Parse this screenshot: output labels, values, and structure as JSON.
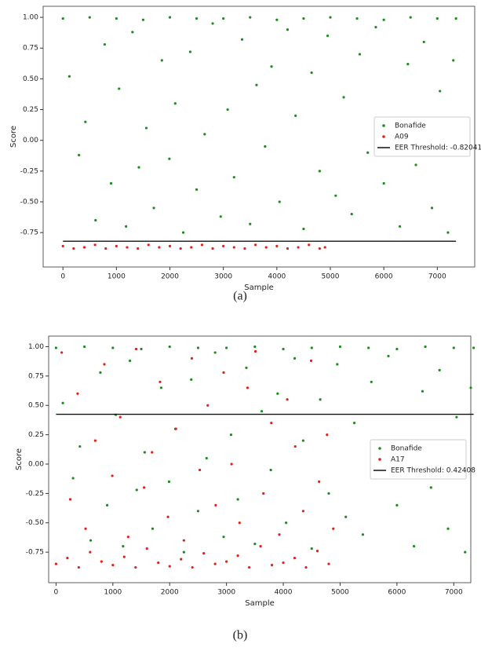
{
  "chart_data": [
    {
      "type": "scatter",
      "caption": "(a)",
      "x_label": "Sample",
      "y_label": "Score",
      "xlim": [
        -370,
        7700
      ],
      "ylim": [
        -1.03,
        1.09
      ],
      "xticks": [
        0,
        1000,
        2000,
        3000,
        4000,
        5000,
        6000,
        7000
      ],
      "yticks": [
        -0.75,
        {
          "value": -0.5,
          "label": "-0.50"
        },
        -0.25,
        {
          "value": 0,
          "label": "0.00"
        },
        0.25,
        {
          "value": 0.5,
          "label": "0.50"
        },
        0.75,
        {
          "value": 1,
          "label": "1.00"
        }
      ],
      "legend": "center right",
      "series": [
        {
          "name": "Bonafide",
          "color": "#1f8a1f",
          "x": [
            0,
            500,
            1000,
            1500,
            2000,
            2500,
            3000,
            3500,
            4000,
            4500,
            5000,
            5500,
            6000,
            6500,
            7000,
            7350,
            120,
            300,
            420,
            610,
            780,
            900,
            1050,
            1180,
            1300,
            1420,
            1560,
            1700,
            1850,
            1990,
            2100,
            2250,
            2380,
            2500,
            2650,
            2800,
            2950,
            3080,
            3200,
            3350,
            3500,
            3620,
            3780,
            3900,
            4050,
            4200,
            4350,
            4500,
            4650,
            4800,
            4950,
            5100,
            5250,
            5400,
            5550,
            5700,
            5850,
            6000,
            6150,
            6300,
            6450,
            6600,
            6750,
            6900,
            7050,
            7200,
            7300
          ],
          "values": [
            0.99,
            1.0,
            0.99,
            0.98,
            1.0,
            0.99,
            0.99,
            1.0,
            0.98,
            0.99,
            1.0,
            0.99,
            0.98,
            1.0,
            0.99,
            0.99,
            0.52,
            -0.12,
            0.15,
            -0.65,
            0.78,
            -0.35,
            0.42,
            -0.7,
            0.88,
            -0.22,
            0.1,
            -0.55,
            0.65,
            -0.15,
            0.3,
            -0.75,
            0.72,
            -0.4,
            0.05,
            0.95,
            -0.62,
            0.25,
            -0.3,
            0.82,
            -0.68,
            0.45,
            -0.05,
            0.6,
            -0.5,
            0.9,
            0.2,
            -0.72,
            0.55,
            -0.25,
            0.85,
            -0.45,
            0.35,
            -0.6,
            0.7,
            -0.1,
            0.92,
            -0.35,
            0.15,
            -0.7,
            0.62,
            -0.2,
            0.8,
            -0.55,
            0.4,
            -0.75,
            0.65
          ]
        },
        {
          "name": "A09",
          "color": "#e0201a",
          "x": [
            0,
            200,
            400,
            600,
            800,
            1000,
            1200,
            1400,
            1600,
            1800,
            2000,
            2200,
            2400,
            2600,
            2800,
            3000,
            3200,
            3400,
            3600,
            3800,
            4000,
            4200,
            4400,
            4600,
            4800,
            4900
          ],
          "values": [
            -0.86,
            -0.88,
            -0.87,
            -0.85,
            -0.88,
            -0.86,
            -0.87,
            -0.88,
            -0.85,
            -0.87,
            -0.86,
            -0.88,
            -0.87,
            -0.85,
            -0.88,
            -0.86,
            -0.87,
            -0.88,
            -0.85,
            -0.87,
            -0.86,
            -0.88,
            -0.87,
            -0.85,
            -0.88,
            -0.87
          ]
        }
      ],
      "threshold": {
        "name": "EER Threshold: -0.82041",
        "value": -0.82041,
        "x": [
          0,
          7350
        ],
        "color": "#111111"
      }
    },
    {
      "type": "scatter",
      "caption": "(b)",
      "x_label": "Sample",
      "y_label": "Score",
      "xlim": [
        -130,
        7300
      ],
      "ylim": [
        -1.01,
        1.09
      ],
      "xticks": [
        0,
        1000,
        2000,
        3000,
        4000,
        5000,
        6000,
        7000
      ],
      "yticks": [
        -0.75,
        {
          "value": -0.5,
          "label": "-0.50"
        },
        -0.25,
        {
          "value": 0,
          "label": "0.00"
        },
        0.25,
        {
          "value": 0.5,
          "label": "0.50"
        },
        0.75,
        {
          "value": 1,
          "label": "1.00"
        }
      ],
      "legend": "center right",
      "series": [
        {
          "name": "Bonafide",
          "color": "#1f8a1f",
          "x": [
            0,
            500,
            1000,
            1500,
            2000,
            2500,
            3000,
            3500,
            4000,
            4500,
            5000,
            5500,
            6000,
            6500,
            7000,
            7350,
            120,
            300,
            420,
            610,
            780,
            900,
            1050,
            1180,
            1300,
            1420,
            1560,
            1700,
            1850,
            1990,
            2100,
            2250,
            2380,
            2500,
            2650,
            2800,
            2950,
            3080,
            3200,
            3350,
            3500,
            3620,
            3780,
            3900,
            4050,
            4200,
            4350,
            4500,
            4650,
            4800,
            4950,
            5100,
            5250,
            5400,
            5550,
            5700,
            5850,
            6000,
            6150,
            6300,
            6450,
            6600,
            6750,
            6900,
            7050,
            7200,
            7300
          ],
          "values": [
            0.99,
            1.0,
            0.99,
            0.98,
            1.0,
            0.99,
            0.99,
            1.0,
            0.98,
            0.99,
            1.0,
            0.99,
            0.98,
            1.0,
            0.99,
            0.99,
            0.52,
            -0.12,
            0.15,
            -0.65,
            0.78,
            -0.35,
            0.42,
            -0.7,
            0.88,
            -0.22,
            0.1,
            -0.55,
            0.65,
            -0.15,
            0.3,
            -0.75,
            0.72,
            -0.4,
            0.05,
            0.95,
            -0.62,
            0.25,
            -0.3,
            0.82,
            -0.68,
            0.45,
            -0.05,
            0.6,
            -0.5,
            0.9,
            0.2,
            -0.72,
            0.55,
            -0.25,
            0.85,
            -0.45,
            0.35,
            -0.6,
            0.7,
            -0.1,
            0.92,
            -0.35,
            0.15,
            -0.7,
            0.62,
            -0.2,
            0.8,
            -0.55,
            0.4,
            -0.75,
            0.65
          ]
        },
        {
          "name": "A17",
          "color": "#e0201a",
          "x": [
            0,
            200,
            400,
            600,
            800,
            1000,
            1200,
            1400,
            1600,
            1800,
            2000,
            2200,
            2400,
            2600,
            2800,
            3000,
            3200,
            3400,
            3600,
            3800,
            4000,
            4200,
            4400,
            4600,
            4800,
            100,
            250,
            380,
            520,
            690,
            850,
            990,
            1130,
            1270,
            1410,
            1550,
            1690,
            1830,
            1970,
            2110,
            2250,
            2390,
            2530,
            2670,
            2810,
            2950,
            3090,
            3230,
            3370,
            3510,
            3650,
            3790,
            3930,
            4070,
            4210,
            4350,
            4490,
            4630,
            4770,
            4880
          ],
          "values": [
            -0.85,
            -0.8,
            -0.88,
            -0.75,
            -0.83,
            -0.86,
            -0.79,
            -0.88,
            -0.72,
            -0.84,
            -0.87,
            -0.81,
            -0.88,
            -0.76,
            -0.85,
            -0.83,
            -0.78,
            -0.88,
            -0.7,
            -0.86,
            -0.84,
            -0.8,
            -0.88,
            -0.74,
            -0.85,
            0.95,
            -0.3,
            0.6,
            -0.55,
            0.2,
            0.85,
            -0.1,
            0.4,
            -0.62,
            0.98,
            -0.2,
            0.1,
            0.7,
            -0.45,
            0.3,
            -0.65,
            0.9,
            -0.05,
            0.5,
            -0.35,
            0.78,
            0.0,
            -0.5,
            0.65,
            0.96,
            -0.25,
            0.35,
            -0.6,
            0.55,
            0.15,
            -0.4,
            0.88,
            -0.15,
            0.25,
            -0.55
          ]
        }
      ],
      "threshold": {
        "name": "EER Threshold: 0.42408",
        "value": 0.42408,
        "x": [
          0,
          7350
        ],
        "color": "#111111"
      }
    }
  ]
}
